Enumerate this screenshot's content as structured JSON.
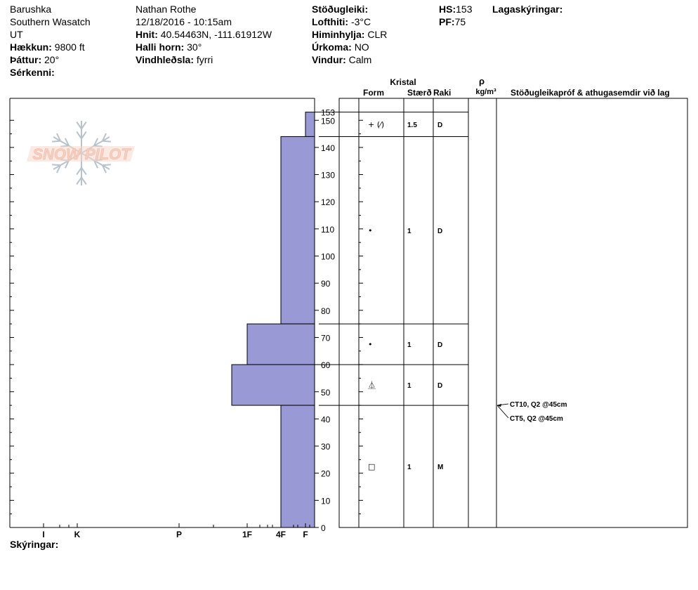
{
  "header": {
    "site": "Barushka",
    "range": "Southern Wasatch",
    "state": "UT",
    "elevation_label": "Hækkun:",
    "elevation": "9800 ft",
    "aspect_label": "Þáttur:",
    "aspect": "20°",
    "specifics_label": "Sérkenni:",
    "observer": "Nathan Rothe",
    "datetime": "12/18/2016 - 10:15am",
    "coords_label": "Hnit:",
    "coords": "40.54463N, -111.61912W",
    "slope_label": "Halli horn:",
    "slope": "30°",
    "wind_loading_label": "Vindhleðsla:",
    "wind_loading": "fyrri",
    "stability_label": "Stöðugleiki:",
    "air_temp_label": "Lofthiti:",
    "air_temp": "-3°C",
    "sky_label": "Himinhylja:",
    "sky": "CLR",
    "precip_label": "Úrkoma:",
    "precip": "NO",
    "wind_label": "Vindur:",
    "wind": "Calm",
    "hs_label": "HS:",
    "hs": "153",
    "pf_label": "PF:",
    "pf": "75",
    "layer_notes_label": "Lagaskýringar:"
  },
  "logo": {
    "text": "SNOW PILOT"
  },
  "columns": {
    "kristal": "Kristal",
    "form": "Form",
    "size": "Stærð",
    "moisture": "Raki",
    "rho": "ρ",
    "density_unit": "kg/m³",
    "tests_header": "Stöðugleikapróf & athugasemdir við lag"
  },
  "footer": {
    "notes_label": "Skýringar:"
  },
  "chart_data": {
    "type": "snow_profile",
    "hs": 153,
    "y_ticks": [
      0,
      10,
      20,
      30,
      40,
      50,
      60,
      70,
      80,
      90,
      100,
      110,
      120,
      130,
      140,
      150,
      153
    ],
    "hardness_scale": [
      "I",
      "K",
      "P",
      "1F",
      "4F",
      "F"
    ],
    "layers": [
      {
        "bottom": 144,
        "top": 153,
        "hardness": "F",
        "grain_form": "+ (⁄)",
        "grain_symbol": "PP_DF",
        "size": "1.5",
        "moisture": "D"
      },
      {
        "bottom": 75,
        "top": 144,
        "hardness": "4F",
        "grain_form": "•",
        "grain_symbol": "RG",
        "size": "1",
        "moisture": "D"
      },
      {
        "bottom": 60,
        "top": 75,
        "hardness": "1F",
        "grain_form": "•",
        "grain_symbol": "RG",
        "size": "1",
        "moisture": "D"
      },
      {
        "bottom": 45,
        "top": 60,
        "hardness": "1F+",
        "grain_form": "⏅",
        "grain_symbol": "FCxr",
        "size": "1",
        "moisture": "D"
      },
      {
        "bottom": 0,
        "top": 45,
        "hardness": "4F",
        "grain_form": "□",
        "grain_symbol": "FC",
        "size": "1",
        "moisture": "M"
      }
    ],
    "tests": [
      {
        "depth": 45,
        "label": "CT10, Q2 @45cm"
      },
      {
        "depth": 45,
        "label": "CT5, Q2 @45cm"
      }
    ],
    "colors": {
      "hardness_fill": "#9999d6",
      "hardness_stroke": "#000000",
      "logo": "#f5cfc0",
      "flake": "#b7c2cc"
    }
  }
}
